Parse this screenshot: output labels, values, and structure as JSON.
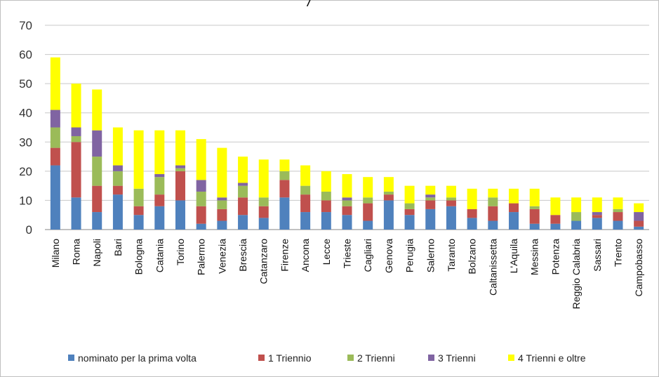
{
  "chart_data": {
    "type": "bar",
    "stacked": true,
    "title": "",
    "xlabel": "",
    "ylabel": "",
    "ylim": [
      0,
      70
    ],
    "yticks": [
      "0",
      "10",
      "20",
      "30",
      "40",
      "50",
      "60",
      "70"
    ],
    "grid": true,
    "legend_position": "bottom",
    "categories": [
      "Milano",
      "Roma",
      "Napoli",
      "Bari",
      "Bologna",
      "Catania",
      "Torino",
      "Palermo",
      "Venezia",
      "Brescia",
      "Catanzaro",
      "Firenze",
      "Ancona",
      "Lecce",
      "Trieste",
      "Cagliari",
      "Genova",
      "Perugia",
      "Salerno",
      "Taranto",
      "Bolzano",
      "Caltanissetta",
      "L'Aquila",
      "Messina",
      "Potenza",
      "Reggio Calabria",
      "Sassari",
      "Trento",
      "Campobasso"
    ],
    "series": [
      {
        "name": "nominato per la prima volta",
        "color": "#4f81bd",
        "values": [
          22,
          11,
          6,
          12,
          5,
          8,
          10,
          2,
          3,
          5,
          4,
          11,
          6,
          6,
          5,
          3,
          10,
          5,
          7,
          8,
          4,
          3,
          6,
          2,
          2,
          3,
          4,
          3,
          1
        ]
      },
      {
        "name": "1 Triennio",
        "color": "#c0504d",
        "values": [
          6,
          19,
          9,
          3,
          3,
          4,
          10,
          6,
          4,
          6,
          4,
          6,
          6,
          4,
          3,
          6,
          2,
          2,
          3,
          2,
          3,
          5,
          3,
          5,
          3,
          0,
          1,
          3,
          2
        ]
      },
      {
        "name": "2 Trienni",
        "color": "#9bbb59",
        "values": [
          7,
          2,
          10,
          5,
          6,
          6,
          1,
          5,
          3,
          4,
          3,
          3,
          3,
          3,
          2,
          2,
          1,
          2,
          1,
          1,
          0,
          3,
          0,
          1,
          0,
          3,
          0,
          1,
          0
        ]
      },
      {
        "name": "3 Trienni",
        "color": "#8064a2",
        "values": [
          6,
          3,
          9,
          2,
          0,
          1,
          1,
          4,
          1,
          1,
          0,
          0,
          0,
          0,
          1,
          0,
          0,
          0,
          1,
          0,
          0,
          0,
          0,
          0,
          0,
          0,
          1,
          0,
          3
        ]
      },
      {
        "name": "4 Trienni e oltre",
        "color": "#ffff00",
        "values": [
          18,
          15,
          14,
          13,
          20,
          15,
          12,
          14,
          17,
          9,
          13,
          4,
          7,
          7,
          8,
          7,
          5,
          6,
          3,
          4,
          7,
          3,
          5,
          6,
          6,
          5,
          5,
          4,
          3
        ]
      }
    ]
  },
  "header": {
    "title_fragment": "/"
  }
}
